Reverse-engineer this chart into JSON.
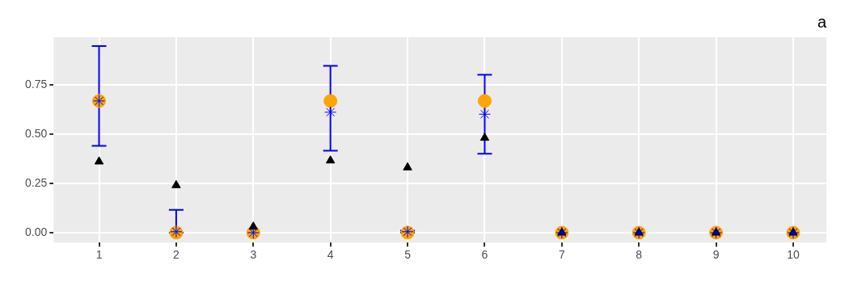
{
  "chart_data": {
    "type": "scatter",
    "title": "a",
    "x": [
      1,
      2,
      3,
      4,
      5,
      6,
      7,
      8,
      9,
      10
    ],
    "series": [
      {
        "color": "#ffa500",
        "marker": "circle",
        "values": [
          0.667,
          0,
          0,
          0.667,
          0,
          0.667,
          0,
          0,
          0,
          0
        ]
      },
      {
        "color": "#000000",
        "marker": "triangle",
        "values": [
          0.36,
          0.24,
          0.03,
          0.365,
          0.33,
          0.48,
          0,
          0,
          0,
          0
        ]
      },
      {
        "color": "#0000ff",
        "marker": "cross",
        "values": [
          0.667,
          0.005,
          0,
          0.61,
          0.005,
          0.6,
          0,
          0,
          0,
          0
        ],
        "errors": [
          [
            0.44,
            0.945
          ],
          [
            0,
            0.115
          ],
          0,
          [
            0.415,
            0.845
          ],
          [
            0,
            0.01
          ],
          [
            0.4,
            0.8
          ],
          0,
          0,
          0,
          0
        ]
      }
    ],
    "xlim": [
      0.41,
      10.43
    ],
    "xticks": [
      1,
      2,
      3,
      4,
      5,
      6,
      7,
      8,
      9,
      10
    ],
    "ylim": [
      -0.05,
      0.99
    ],
    "yticks": [
      {
        "value": 0,
        "label": "0.00"
      },
      {
        "value": 0.25,
        "label": "0.25"
      },
      {
        "value": 0.5,
        "label": "0.50"
      },
      {
        "value": 0.75,
        "label": "0.75"
      }
    ],
    "grid": true,
    "legend": false
  }
}
